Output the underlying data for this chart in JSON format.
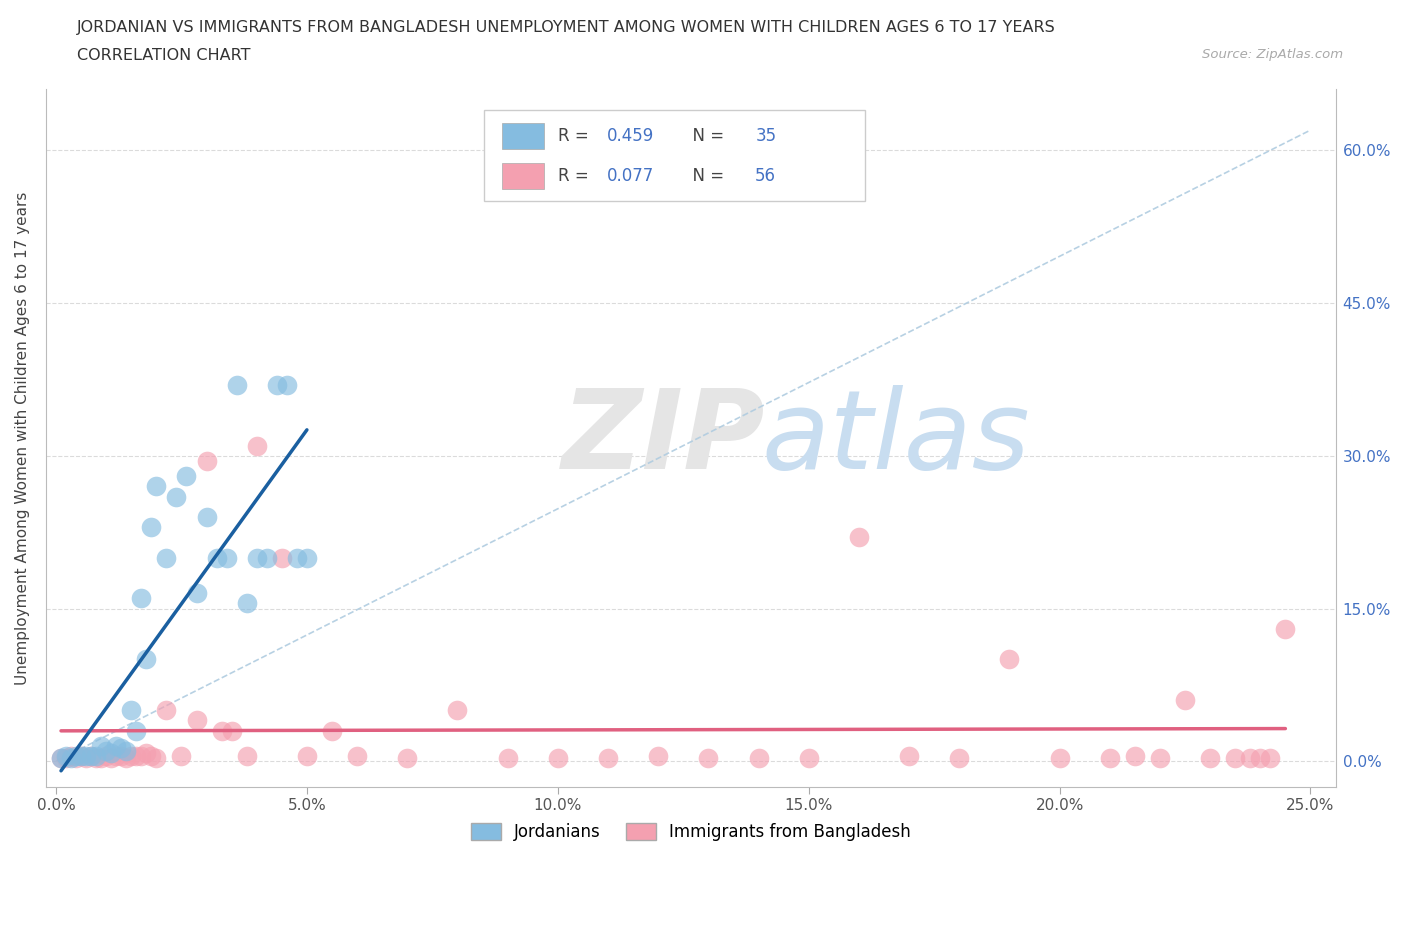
{
  "title_line1": "JORDANIAN VS IMMIGRANTS FROM BANGLADESH UNEMPLOYMENT AMONG WOMEN WITH CHILDREN AGES 6 TO 17 YEARS",
  "title_line2": "CORRELATION CHART",
  "source_text": "Source: ZipAtlas.com",
  "ylabel": "Unemployment Among Women with Children Ages 6 to 17 years",
  "xlim": [
    -0.002,
    0.255
  ],
  "ylim": [
    -0.025,
    0.66
  ],
  "xticks": [
    0.0,
    0.05,
    0.1,
    0.15,
    0.2,
    0.25
  ],
  "xticklabels": [
    "0.0%",
    "5.0%",
    "10.0%",
    "15.0%",
    "20.0%",
    "25.0%"
  ],
  "yticks": [
    0.0,
    0.15,
    0.3,
    0.45,
    0.6
  ],
  "yticklabels_left": [
    "",
    "",
    "",
    "",
    ""
  ],
  "yticklabels_right": [
    "0.0%",
    "15.0%",
    "30.0%",
    "45.0%",
    "60.0%"
  ],
  "jordanians_color": "#85bce0",
  "bangladesh_color": "#f4a0b0",
  "jordan_line_color": "#1a5fa0",
  "bangladesh_line_color": "#e06080",
  "jordan_R": 0.459,
  "jordan_N": 35,
  "bangladesh_R": 0.077,
  "bangladesh_N": 56,
  "legend_jordan_label": "Jordanians",
  "legend_bangladesh_label": "Immigrants from Bangladesh",
  "background_color": "#ffffff",
  "grid_color": "#cccccc",
  "jordanians_x": [
    0.001,
    0.002,
    0.003,
    0.004,
    0.005,
    0.006,
    0.007,
    0.008,
    0.009,
    0.01,
    0.011,
    0.012,
    0.013,
    0.014,
    0.015,
    0.016,
    0.017,
    0.018,
    0.019,
    0.02,
    0.022,
    0.024,
    0.026,
    0.028,
    0.03,
    0.032,
    0.034,
    0.036,
    0.038,
    0.04,
    0.042,
    0.044,
    0.046,
    0.048,
    0.05
  ],
  "jordanians_y": [
    0.003,
    0.005,
    0.003,
    0.005,
    0.005,
    0.005,
    0.005,
    0.005,
    0.015,
    0.01,
    0.008,
    0.015,
    0.013,
    0.01,
    0.05,
    0.03,
    0.16,
    0.1,
    0.23,
    0.27,
    0.2,
    0.26,
    0.28,
    0.165,
    0.24,
    0.2,
    0.2,
    0.37,
    0.155,
    0.2,
    0.2,
    0.37,
    0.37,
    0.2,
    0.2
  ],
  "bangladesh_x": [
    0.001,
    0.002,
    0.003,
    0.004,
    0.005,
    0.006,
    0.007,
    0.008,
    0.009,
    0.01,
    0.011,
    0.012,
    0.013,
    0.014,
    0.015,
    0.016,
    0.017,
    0.018,
    0.019,
    0.02,
    0.022,
    0.025,
    0.028,
    0.03,
    0.033,
    0.035,
    0.038,
    0.04,
    0.045,
    0.05,
    0.055,
    0.06,
    0.07,
    0.08,
    0.09,
    0.1,
    0.11,
    0.12,
    0.13,
    0.14,
    0.15,
    0.16,
    0.17,
    0.18,
    0.19,
    0.2,
    0.21,
    0.215,
    0.22,
    0.225,
    0.23,
    0.235,
    0.238,
    0.24,
    0.242,
    0.245
  ],
  "bangladesh_y": [
    0.003,
    0.003,
    0.005,
    0.003,
    0.005,
    0.003,
    0.005,
    0.003,
    0.003,
    0.005,
    0.003,
    0.005,
    0.005,
    0.003,
    0.005,
    0.005,
    0.005,
    0.008,
    0.005,
    0.003,
    0.05,
    0.005,
    0.04,
    0.295,
    0.03,
    0.03,
    0.005,
    0.31,
    0.2,
    0.005,
    0.03,
    0.005,
    0.003,
    0.05,
    0.003,
    0.003,
    0.003,
    0.005,
    0.003,
    0.003,
    0.003,
    0.22,
    0.005,
    0.003,
    0.1,
    0.003,
    0.003,
    0.005,
    0.003,
    0.06,
    0.003,
    0.003,
    0.003,
    0.003,
    0.003,
    0.13
  ]
}
